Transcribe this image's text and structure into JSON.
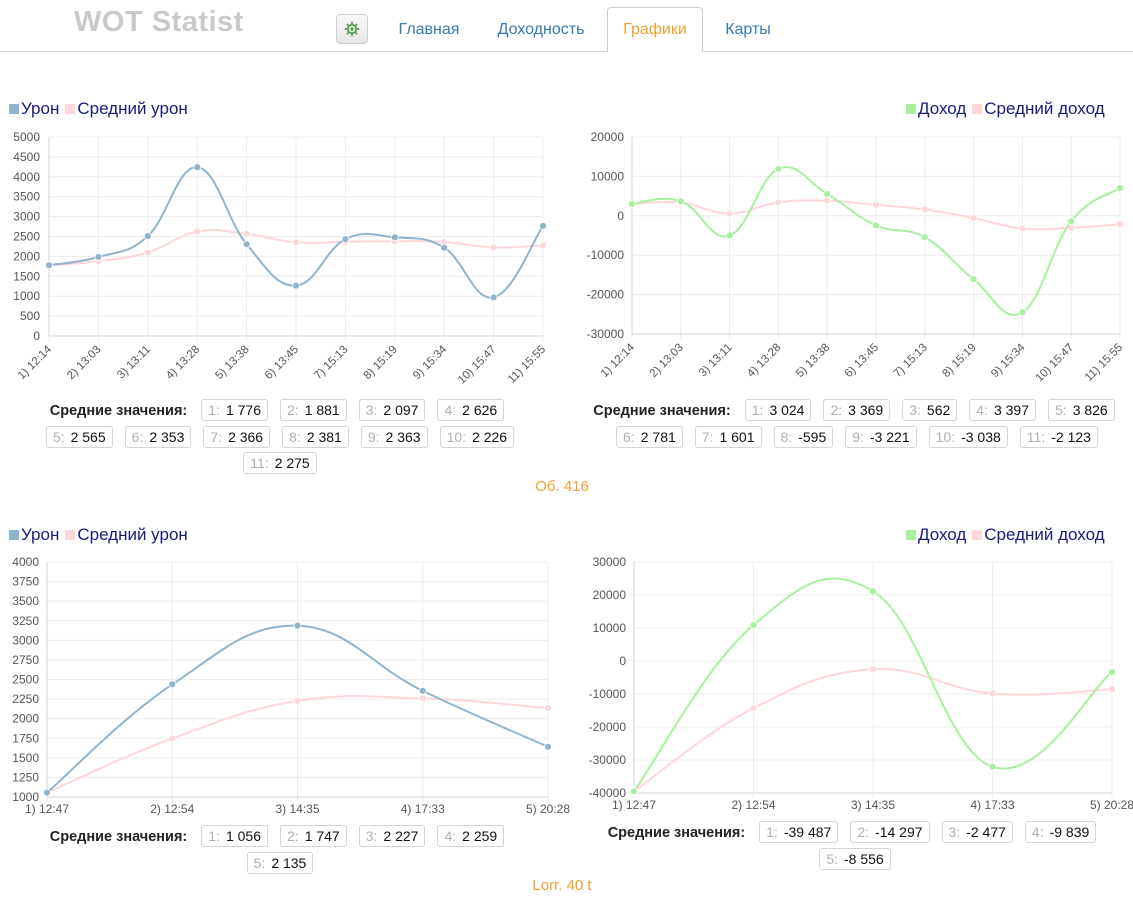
{
  "header": {
    "logo": "WOT Statist",
    "tabs": [
      {
        "label": "Главная"
      },
      {
        "label": "Доходность"
      },
      {
        "label": "Графики"
      },
      {
        "label": "Карты"
      }
    ],
    "settings_icon": "gear-icon"
  },
  "colors": {
    "damage": "#8fb4cc",
    "damage_avg": "#ffd6da",
    "income": "#a8f0a0",
    "income_avg": "#ffd6da",
    "accent": "#f0a030",
    "link": "#337ab7"
  },
  "averages_label": "Средние значения:",
  "vehicles": [
    {
      "name": "Об. 416",
      "damage_chart": {
        "legend": [
          "Урон",
          "Средний урон"
        ],
        "averages": [
          {
            "n": "1:",
            "v": "1 776"
          },
          {
            "n": "2:",
            "v": "1 881"
          },
          {
            "n": "3:",
            "v": "2 097"
          },
          {
            "n": "4:",
            "v": "2 626"
          },
          {
            "n": "5:",
            "v": "2 565"
          },
          {
            "n": "6:",
            "v": "2 353"
          },
          {
            "n": "7:",
            "v": "2 366"
          },
          {
            "n": "8:",
            "v": "2 381"
          },
          {
            "n": "9:",
            "v": "2 363"
          },
          {
            "n": "10:",
            "v": "2 226"
          },
          {
            "n": "11:",
            "v": "2 275"
          }
        ]
      },
      "income_chart": {
        "legend": [
          "Доход",
          "Средний доход"
        ],
        "averages": [
          {
            "n": "1:",
            "v": "3 024"
          },
          {
            "n": "2:",
            "v": "3 369"
          },
          {
            "n": "3:",
            "v": "562"
          },
          {
            "n": "4:",
            "v": "3 397"
          },
          {
            "n": "5:",
            "v": "3 826"
          },
          {
            "n": "6:",
            "v": "2 781"
          },
          {
            "n": "7:",
            "v": "1 601"
          },
          {
            "n": "8:",
            "v": "-595"
          },
          {
            "n": "9:",
            "v": "-3 221"
          },
          {
            "n": "10:",
            "v": "-3 038"
          },
          {
            "n": "11:",
            "v": "-2 123"
          }
        ]
      }
    },
    {
      "name": "Lorr. 40 t",
      "damage_chart": {
        "legend": [
          "Урон",
          "Средний урон"
        ],
        "averages": [
          {
            "n": "1:",
            "v": "1 056"
          },
          {
            "n": "2:",
            "v": "1 747"
          },
          {
            "n": "3:",
            "v": "2 227"
          },
          {
            "n": "4:",
            "v": "2 259"
          },
          {
            "n": "5:",
            "v": "2 135"
          }
        ]
      },
      "income_chart": {
        "legend": [
          "Доход",
          "Средний доход"
        ],
        "averages": [
          {
            "n": "1:",
            "v": "-39 487"
          },
          {
            "n": "2:",
            "v": "-14 297"
          },
          {
            "n": "3:",
            "v": "-2 477"
          },
          {
            "n": "4:",
            "v": "-9 839"
          },
          {
            "n": "5:",
            "v": "-8 556"
          }
        ]
      }
    }
  ],
  "chart_data": [
    {
      "type": "line",
      "title": "Урон",
      "categories": [
        "1) 12:14",
        "2) 13:03",
        "3) 13:11",
        "4) 13:28",
        "5) 13:38",
        "6) 13:45",
        "7) 15:13",
        "8) 15:19",
        "9) 15:34",
        "10) 15:47",
        "11) 15:55"
      ],
      "yticks": [
        "0",
        "500",
        "1000",
        "1500",
        "2000",
        "2500",
        "3000",
        "3500",
        "4000",
        "4500",
        "5000"
      ],
      "ylim": [
        0,
        5000
      ],
      "series": [
        {
          "name": "Урон",
          "color": "#8fb4cc",
          "values": [
            1776,
            1986,
            2509,
            4240,
            2307,
            1265,
            2431,
            2480,
            2218,
            970,
            2767
          ]
        },
        {
          "name": "Средний урон",
          "color": "#ffd6da",
          "values": [
            1776,
            1881,
            2097,
            2626,
            2565,
            2353,
            2366,
            2381,
            2363,
            2226,
            2275
          ]
        }
      ]
    },
    {
      "type": "line",
      "title": "Доход",
      "categories": [
        "1) 12:14",
        "2) 13:03",
        "3) 13:11",
        "4) 13:28",
        "5) 13:38",
        "6) 13:45",
        "7) 15:13",
        "8) 15:19",
        "9) 15:34",
        "10) 15:47",
        "11) 15:55"
      ],
      "yticks": [
        "-30000",
        "-20000",
        "-10000",
        "0",
        "10000",
        "20000"
      ],
      "ylim": [
        -30000,
        20000
      ],
      "series": [
        {
          "name": "Доход",
          "color": "#a8f0a0",
          "values": [
            3024,
            3714,
            -5052,
            11906,
            5544,
            -2444,
            -5433,
            -16124,
            -24488,
            -1393,
            7041
          ]
        },
        {
          "name": "Средний доход",
          "color": "#ffd6da",
          "values": [
            3024,
            3369,
            562,
            3397,
            3826,
            2781,
            1601,
            -595,
            -3221,
            -3038,
            -2123
          ]
        }
      ]
    },
    {
      "type": "line",
      "title": "Урон",
      "categories": [
        "1) 12:47",
        "2) 12:54",
        "3) 14:35",
        "4) 17:33",
        "5) 20:28"
      ],
      "yticks": [
        "1000",
        "1250",
        "1500",
        "1750",
        "2000",
        "2250",
        "2500",
        "2750",
        "3000",
        "3250",
        "3500",
        "3750",
        "4000"
      ],
      "ylim": [
        1000,
        4000
      ],
      "series": [
        {
          "name": "Урон",
          "color": "#8fb4cc",
          "values": [
            1056,
            2438,
            3187,
            2355,
            1641
          ]
        },
        {
          "name": "Средний урон",
          "color": "#ffd6da",
          "values": [
            1056,
            1747,
            2227,
            2259,
            2135
          ]
        }
      ]
    },
    {
      "type": "line",
      "title": "Доход",
      "categories": [
        "1) 12:47",
        "2) 12:54",
        "3) 14:35",
        "4) 17:33",
        "5) 20:28"
      ],
      "yticks": [
        "-40000",
        "-30000",
        "-20000",
        "-10000",
        "0",
        "10000",
        "20000",
        "30000"
      ],
      "ylim": [
        -40000,
        30000
      ],
      "series": [
        {
          "name": "Доход",
          "color": "#a8f0a0",
          "values": [
            -39487,
            10893,
            21145,
            -32025,
            -3351
          ]
        },
        {
          "name": "Средний доход",
          "color": "#ffd6da",
          "values": [
            -39487,
            -14297,
            -2477,
            -9839,
            -8556
          ]
        }
      ]
    }
  ]
}
